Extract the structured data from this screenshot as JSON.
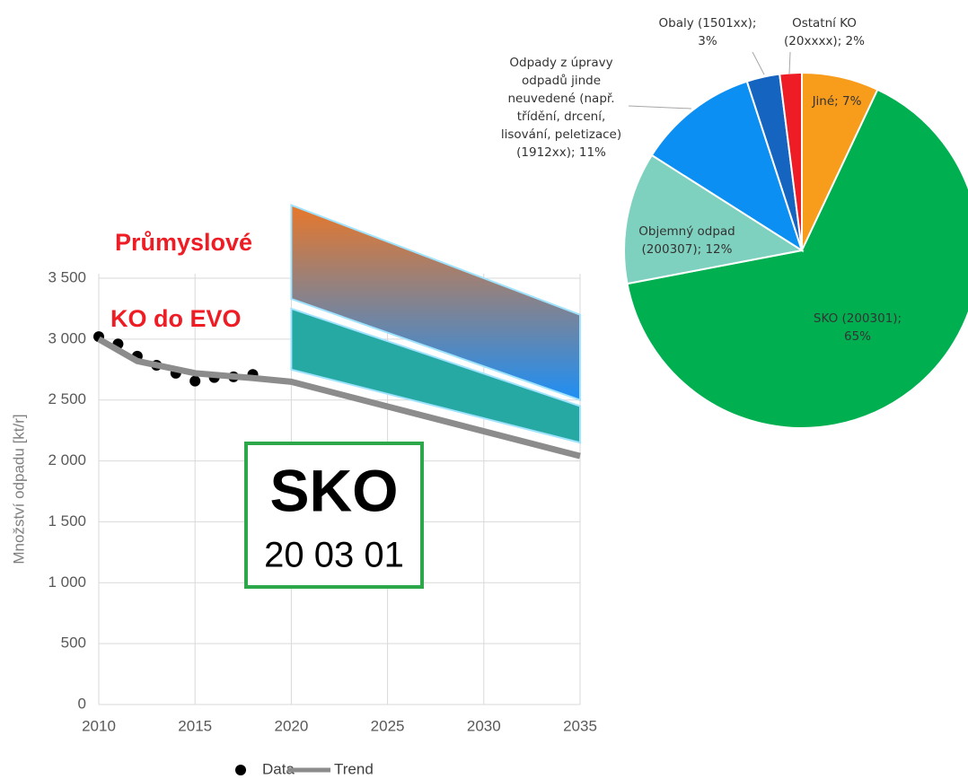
{
  "chart_data": [
    {
      "type": "line",
      "ylabel": "Množství odpadu [kt/r]",
      "xlim": [
        2010,
        2035
      ],
      "xticks": [
        2010,
        2015,
        2020,
        2025,
        2030,
        2035
      ],
      "ylim": [
        0,
        3500
      ],
      "yticks": [
        0,
        500,
        {
          "value": 1000,
          "label": "1 000"
        },
        {
          "value": 1500,
          "label": "1 500"
        },
        {
          "value": 2000,
          "label": "2 000"
        },
        {
          "value": 2500,
          "label": "2 500"
        },
        {
          "value": 3000,
          "label": "3 000"
        },
        {
          "value": 3500,
          "label": "3 500"
        }
      ],
      "grid": true,
      "legend": "bottom",
      "series": [
        {
          "name": "Data",
          "color": "#000000",
          "marker": "circle",
          "x": [
            2010,
            2011,
            2012,
            2013,
            2014,
            2015,
            2016,
            2017,
            2018
          ],
          "values": [
            3020,
            2960,
            2860,
            2785,
            2720,
            2655,
            2685,
            2690,
            2710
          ]
        },
        {
          "name": "Trend",
          "color": "#8c8c8c",
          "x": [
            2010,
            2012,
            2015,
            2018,
            2020,
            2035
          ],
          "values": [
            3000,
            2820,
            2720,
            2680,
            2650,
            2040
          ]
        }
      ],
      "bands": [
        {
          "label": "Průmyslové",
          "x": [
            2020,
            2035
          ],
          "upper": [
            4100,
            3200
          ],
          "lower": [
            3330,
            2500
          ],
          "colors": [
            "#e8772a",
            "#1e8ff5"
          ]
        },
        {
          "label": "KO do EVO",
          "x": [
            2020,
            2035
          ],
          "upper": [
            3250,
            2450
          ],
          "lower": [
            2750,
            2150
          ],
          "colors": [
            "#27a9a3"
          ]
        }
      ],
      "box": {
        "title": "SKO",
        "code": "20 03 01",
        "color": "#2ca84a"
      }
    },
    {
      "type": "pie",
      "values": [
        7,
        65,
        12,
        11,
        3,
        2
      ],
      "value_labels": [
        "Jiné; 7%",
        "SKO (200301); 65%",
        "Objemný odpad (200307); 12%",
        "Odpady z úpravy odpadů jinde neuvedené (např. třídění, drcení, lisování, peletizace) (1912xx); 11%",
        "Obaly (1501xx); 3%",
        "Ostatní KO (20xxxx); 2%"
      ],
      "colors": [
        "#f89c1c",
        "#00b050",
        "#7fd1bf",
        "#0b8ff2",
        "#1565c0",
        "#ee1c24"
      ]
    }
  ]
}
